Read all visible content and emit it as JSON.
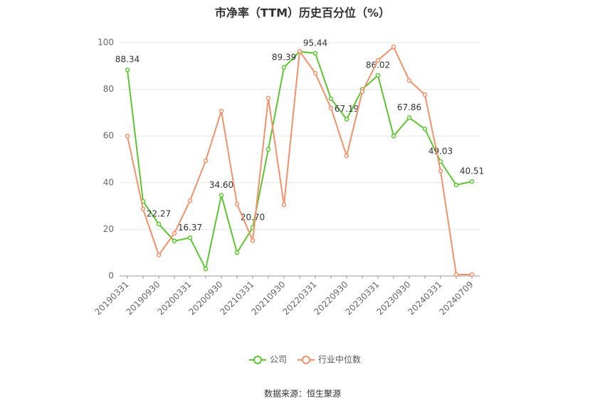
{
  "chart_data": {
    "type": "line",
    "title": "市净率（TTM）历史百分位（%）",
    "categories": [
      "20190331",
      null,
      "20190930",
      null,
      "20200331",
      null,
      "20200930",
      null,
      "20210331",
      null,
      "20210930",
      null,
      "20220331",
      null,
      "20220930",
      null,
      "20230331",
      null,
      "20230930",
      null,
      "20240331",
      null,
      "20240709"
    ],
    "series": [
      {
        "name": "公司",
        "color": "#5cc631",
        "values": [
          88.34,
          32,
          22.27,
          15,
          16.37,
          3,
          34.6,
          10,
          20.7,
          54.3,
          89.39,
          96.2,
          95.44,
          76,
          67.19,
          80,
          86.02,
          60,
          67.86,
          63,
          49.03,
          39,
          40.51
        ],
        "value_labels": [
          "88.34",
          null,
          "22.27",
          null,
          "16.37",
          null,
          "34.60",
          null,
          "20.70",
          null,
          "89.39",
          null,
          "95.44",
          null,
          "67.19",
          null,
          "86.02",
          null,
          "67.86",
          null,
          "49.03",
          null,
          "40.51"
        ]
      },
      {
        "name": "行业中位数",
        "color": "#f4916a",
        "values": [
          60,
          28.7,
          9,
          18.3,
          32.3,
          49.4,
          70.7,
          30.8,
          15.2,
          76.2,
          30.5,
          96.3,
          86.9,
          72,
          51.5,
          79,
          92.4,
          98.2,
          83.8,
          77.7,
          45,
          0.6,
          0.6
        ]
      }
    ],
    "ylim": [
      0,
      100
    ],
    "yticks": [
      0,
      20,
      40,
      60,
      80,
      100
    ],
    "grid": true,
    "legend": "bottom",
    "source": "数据来源：恒生聚源"
  }
}
